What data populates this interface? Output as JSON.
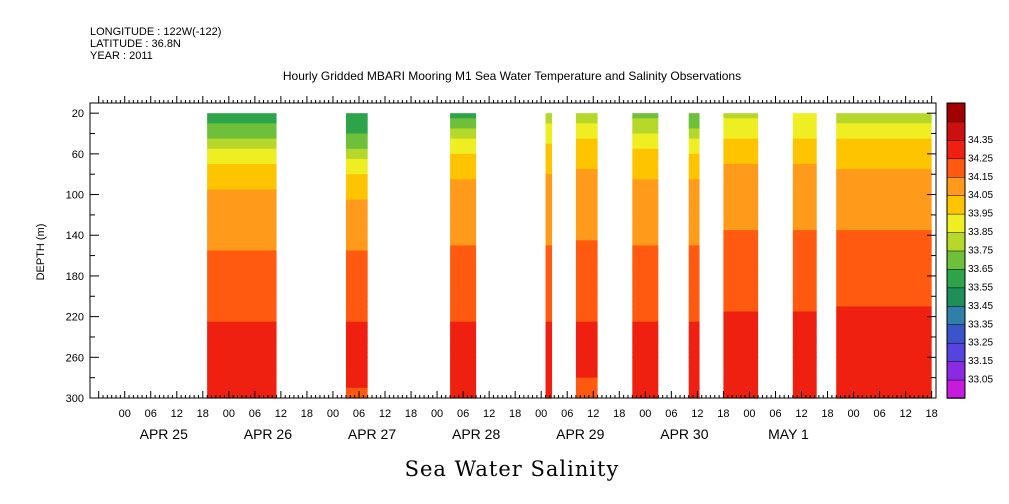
{
  "header": {
    "longitude": "LONGITUDE : 122W(-122)",
    "latitude": "LATITUDE : 36.8N",
    "year": "YEAR : 2011",
    "title": "Hourly Gridded MBARI Mooring M1 Sea Water Temperature and Salinity Observations"
  },
  "chart_data": {
    "type": "heatmap",
    "title": "Sea Water Salinity",
    "ylabel": "DEPTH (m)",
    "xlabel": "",
    "x_unit": "hours since 2011-04-25 00:00",
    "xlim": [
      -8,
      187
    ],
    "ylim": [
      300,
      10
    ],
    "y_ticks": [
      20,
      60,
      100,
      140,
      180,
      220,
      260,
      300
    ],
    "hour_tick_labels": [
      "00",
      "06",
      "12",
      "18"
    ],
    "day_labels": [
      "APR 25",
      "APR 26",
      "APR 27",
      "APR 28",
      "APR 29",
      "APR 30",
      "MAY  1"
    ],
    "colorbar_levels": [
      33.05,
      33.15,
      33.25,
      33.35,
      33.45,
      33.55,
      33.65,
      33.75,
      33.85,
      33.95,
      34.05,
      34.15,
      34.25,
      34.35
    ],
    "colorbar_colors": [
      "#c61bdc",
      "#8a2be2",
      "#5544dd",
      "#3a55cc",
      "#2f7fa8",
      "#1f8f5a",
      "#2ea44a",
      "#6ec03a",
      "#b6d82b",
      "#eeee22",
      "#ffc400",
      "#ff9a1a",
      "#ff5a10",
      "#f02010",
      "#cc1010",
      "#a00000"
    ],
    "series_segments": [
      {
        "start": 19,
        "end": 35,
        "profile": [
          33.58,
          33.7,
          33.9,
          34.0,
          34.06,
          34.08,
          34.12,
          34.16,
          34.18,
          34.22,
          34.24,
          34.3,
          34.28,
          34.25
        ]
      },
      {
        "start": 51,
        "end": 56,
        "profile": [
          33.55,
          33.66,
          33.8,
          33.95,
          34.04,
          34.08,
          34.12,
          34.16,
          34.18,
          34.22,
          34.24,
          34.3,
          34.27,
          34.24
        ]
      },
      {
        "start": 75,
        "end": 81,
        "profile": [
          33.62,
          33.8,
          33.96,
          34.04,
          34.08,
          34.1,
          34.14,
          34.16,
          34.2,
          34.22,
          34.24,
          34.3,
          34.28,
          34.25
        ]
      },
      {
        "start": 97,
        "end": 98.5,
        "profile": [
          33.8,
          33.9,
          34.0,
          34.05,
          34.08,
          34.1,
          34.14,
          34.16,
          34.2,
          34.22,
          34.24,
          34.3,
          34.28,
          34.25
        ]
      },
      {
        "start": 104,
        "end": 109,
        "profile": [
          33.78,
          33.92,
          34.02,
          34.06,
          34.09,
          34.12,
          34.14,
          34.17,
          34.2,
          34.22,
          34.24,
          34.28,
          34.26,
          34.24
        ]
      },
      {
        "start": 117,
        "end": 123,
        "profile": [
          33.72,
          33.86,
          33.98,
          34.04,
          34.08,
          34.12,
          34.14,
          34.16,
          34.18,
          34.22,
          34.24,
          34.3,
          34.28,
          34.25
        ]
      },
      {
        "start": 130,
        "end": 132.5,
        "profile": [
          33.66,
          33.8,
          33.95,
          34.04,
          34.08,
          34.12,
          34.14,
          34.16,
          34.18,
          34.22,
          34.24,
          34.3,
          34.28,
          34.25
        ]
      },
      {
        "start": 138,
        "end": 146,
        "profile": [
          33.82,
          33.92,
          34.02,
          34.07,
          34.1,
          34.12,
          34.16,
          34.18,
          34.2,
          34.22,
          34.26,
          34.3,
          34.28,
          34.25
        ]
      },
      {
        "start": 154,
        "end": 159.5,
        "profile": [
          33.86,
          33.94,
          34.02,
          34.07,
          34.1,
          34.12,
          34.16,
          34.18,
          34.2,
          34.22,
          34.26,
          34.3,
          34.28,
          34.25
        ]
      },
      {
        "start": 164,
        "end": 186,
        "profile": [
          33.8,
          33.92,
          34.02,
          34.06,
          34.08,
          34.12,
          34.16,
          34.2,
          34.22,
          34.24,
          34.26,
          34.32,
          34.3,
          34.26
        ]
      }
    ],
    "profile_depths": [
      20,
      40,
      60,
      80,
      100,
      120,
      140,
      160,
      180,
      200,
      220,
      240,
      260,
      300
    ]
  }
}
